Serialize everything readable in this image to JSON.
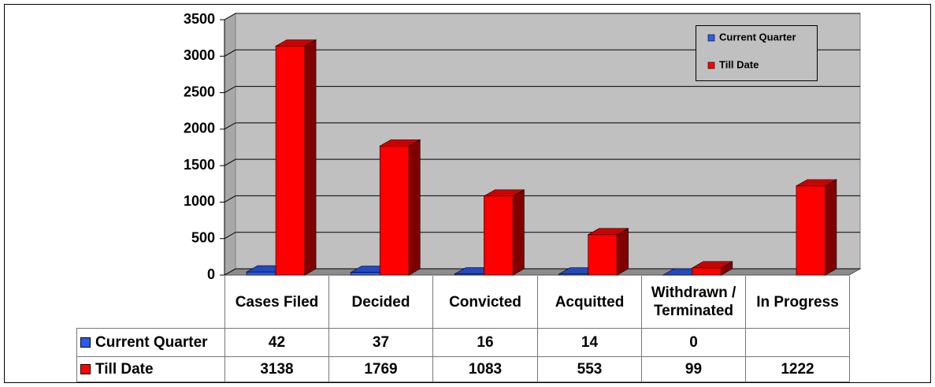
{
  "chart_data": {
    "type": "bar3d",
    "categories": [
      "Cases Filed",
      "Decided",
      "Convicted",
      "Acquitted",
      "Withdrawn / Terminated",
      "In Progress"
    ],
    "series": [
      {
        "name": "Current Quarter",
        "color": "#2a5bf0",
        "values": [
          42,
          37,
          16,
          14,
          0,
          null
        ]
      },
      {
        "name": "Till Date",
        "color": "#ff0000",
        "values": [
          3138,
          1769,
          1083,
          553,
          99,
          1222
        ]
      }
    ],
    "ylim": [
      0,
      3500
    ],
    "yticks": [
      0,
      500,
      1000,
      1500,
      2000,
      2500,
      3000,
      3500
    ],
    "grid": true,
    "legend": "top-right",
    "data_table": true
  }
}
